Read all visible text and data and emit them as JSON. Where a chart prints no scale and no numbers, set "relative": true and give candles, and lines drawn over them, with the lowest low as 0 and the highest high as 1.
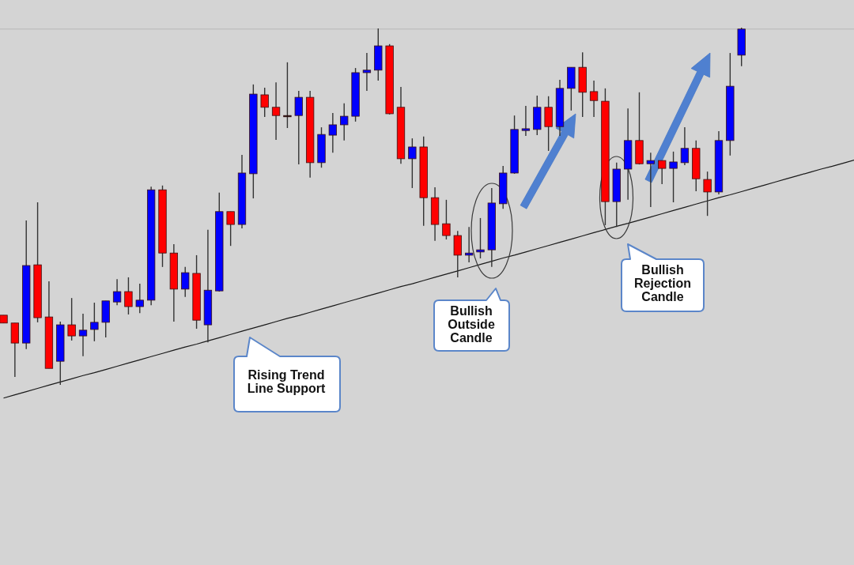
{
  "chart_data": {
    "type": "candlestick",
    "relative": true,
    "categories": [
      null,
      null,
      null,
      null,
      null,
      null,
      null,
      null,
      null,
      null,
      null,
      null,
      null,
      null,
      null,
      null,
      null,
      null,
      null,
      null,
      null,
      null,
      null,
      null,
      null,
      null,
      null,
      null,
      null,
      null,
      null,
      null,
      null,
      null,
      null,
      null,
      null,
      null,
      null,
      null,
      null,
      null,
      null,
      null,
      null,
      null,
      null,
      null,
      null,
      null,
      null,
      null,
      null,
      null,
      null,
      null,
      null,
      null,
      null,
      null,
      null,
      null,
      null,
      null,
      null,
      null,
      null,
      null,
      null,
      null,
      null,
      null,
      null,
      null,
      null,
      null
    ],
    "ohlc": [
      [
        0.195,
        0.195,
        0.173,
        0.173
      ],
      [
        0.173,
        0.173,
        0.022,
        0.117
      ],
      [
        0.117,
        0.46,
        0.1,
        0.334
      ],
      [
        0.336,
        0.511,
        0.175,
        0.188
      ],
      [
        0.19,
        0.29,
        0.046,
        0.046
      ],
      [
        0.066,
        0.177,
        0,
        0.168
      ],
      [
        0.168,
        0.243,
        0.124,
        0.137
      ],
      [
        0.137,
        0.199,
        0.08,
        0.153
      ],
      [
        0.155,
        0.23,
        0.122,
        0.175
      ],
      [
        0.175,
        0.235,
        0.133,
        0.235
      ],
      [
        0.232,
        0.296,
        0.223,
        0.261
      ],
      [
        0.261,
        0.301,
        0.197,
        0.219
      ],
      [
        0.219,
        0.283,
        0.201,
        0.237
      ],
      [
        0.237,
        0.555,
        0.223,
        0.546
      ],
      [
        0.546,
        0.558,
        0.33,
        0.369
      ],
      [
        0.369,
        0.394,
        0.177,
        0.268
      ],
      [
        0.268,
        0.33,
        0.246,
        0.314
      ],
      [
        0.312,
        0.363,
        0.157,
        0.181
      ],
      [
        0.168,
        0.434,
        0.119,
        0.265
      ],
      [
        0.263,
        0.538,
        0.261,
        0.485
      ],
      [
        0.485,
        0.485,
        0.389,
        0.449
      ],
      [
        0.449,
        0.644,
        0.438,
        0.593
      ],
      [
        0.591,
        0.841,
        0.522,
        0.814
      ],
      [
        0.812,
        0.832,
        0.75,
        0.777
      ],
      [
        0.777,
        0.847,
        0.686,
        0.754
      ],
      [
        0.754,
        0.903,
        0.719,
        0.754
      ],
      [
        0.754,
        0.823,
        0.617,
        0.805
      ],
      [
        0.805,
        0.823,
        0.58,
        0.622
      ],
      [
        0.622,
        0.721,
        0.608,
        0.701
      ],
      [
        0.699,
        0.761,
        0.65,
        0.728
      ],
      [
        0.728,
        0.788,
        0.684,
        0.752
      ],
      [
        0.752,
        0.887,
        0.737,
        0.874
      ],
      [
        0.874,
        0.929,
        0.823,
        0.881
      ],
      [
        0.881,
        0.998,
        0.852,
        0.949
      ],
      [
        0.949,
        0.954,
        0.757,
        0.759
      ],
      [
        0.777,
        0.834,
        0.619,
        0.633
      ],
      [
        0.633,
        0.69,
        0.551,
        0.666
      ],
      [
        0.666,
        0.695,
        0.445,
        0.524
      ],
      [
        0.524,
        0.553,
        0.403,
        0.449
      ],
      [
        0.451,
        0.518,
        0.407,
        0.418
      ],
      [
        0.418,
        0.431,
        0.301,
        0.363
      ],
      [
        0.363,
        0.442,
        0.343,
        0.369
      ],
      [
        0.372,
        0.467,
        0.354,
        0.378
      ],
      [
        0.378,
        0.551,
        0.33,
        0.509
      ],
      [
        0.507,
        0.613,
        0.493,
        0.593
      ],
      [
        0.593,
        0.754,
        0.591,
        0.715
      ],
      [
        0.712,
        0.781,
        0.697,
        0.717
      ],
      [
        0.715,
        0.81,
        0.699,
        0.777
      ],
      [
        0.777,
        0.808,
        0.655,
        0.723
      ],
      [
        0.723,
        0.854,
        0.697,
        0.83
      ],
      [
        0.83,
        0.889,
        0.768,
        0.889
      ],
      [
        0.889,
        0.931,
        0.75,
        0.819
      ],
      [
        0.821,
        0.852,
        0.75,
        0.796
      ],
      [
        0.794,
        0.83,
        0.447,
        0.513
      ],
      [
        0.513,
        0.622,
        0.442,
        0.604
      ],
      [
        0.604,
        0.774,
        0.518,
        0.684
      ],
      [
        0.684,
        0.819,
        0.617,
        0.619
      ],
      [
        0.619,
        0.65,
        0.498,
        0.628
      ],
      [
        0.628,
        0.628,
        0.562,
        0.606
      ],
      [
        0.606,
        0.653,
        0.511,
        0.624
      ],
      [
        0.622,
        0.721,
        0.615,
        0.662
      ],
      [
        0.662,
        0.684,
        0.542,
        0.577
      ],
      [
        0.575,
        0.597,
        0.473,
        0.54
      ],
      [
        0.54,
        0.71,
        0.533,
        0.684
      ],
      [
        0.684,
        0.929,
        0.642,
        0.836
      ],
      [
        0.923,
        1,
        0.892,
        0.996
      ],
      null,
      null,
      null,
      null,
      null,
      null,
      null,
      null,
      null,
      null
    ],
    "colors": [
      "#ff0000",
      "#ff0000",
      "#0000ff",
      "#ff0000",
      "#ff0000",
      "#0000ff",
      "#ff0000",
      "#0000ff",
      "#0000ff",
      "#0000ff",
      "#0000ff",
      "#ff0000",
      "#0000ff",
      "#0000ff",
      "#ff0000",
      "#ff0000",
      "#0000ff",
      "#ff0000",
      "#0000ff",
      "#0000ff",
      "#ff0000",
      "#0000ff",
      "#0000ff",
      "#ff0000",
      "#ff0000",
      "#000000",
      "#0000ff",
      "#ff0000",
      "#0000ff",
      "#0000ff",
      "#0000ff",
      "#0000ff",
      "#0000ff",
      "#0000ff",
      "#ff0000",
      "#ff0000",
      "#0000ff",
      "#ff0000",
      "#ff0000",
      "#ff0000",
      "#ff0000",
      "#0000ff",
      "#0000ff",
      "#0000ff",
      "#0000ff",
      "#0000ff",
      "#0000ff",
      "#0000ff",
      "#ff0000",
      "#0000ff",
      "#0000ff",
      "#ff0000",
      "#ff0000",
      "#ff0000",
      "#0000ff",
      "#0000ff",
      "#ff0000",
      "#0000ff",
      "#ff0000",
      "#0000ff",
      "#0000ff",
      "#ff0000",
      "#ff0000",
      "#0000ff",
      "#0000ff",
      "#0000ff",
      null,
      null,
      null,
      null,
      null,
      null,
      null,
      null,
      null,
      null
    ],
    "series": [
      {
        "type": "line",
        "color": "#1a1a1a",
        "values": [
          -0.037,
          -0.028,
          -0.019,
          -0.01,
          -0.001,
          0.008,
          0.017,
          0.026,
          0.034,
          0.043,
          0.052,
          0.061,
          0.07,
          0.079,
          0.088,
          0.097,
          0.106,
          0.114,
          0.123,
          0.132,
          0.141,
          0.15,
          0.159,
          0.168,
          0.177,
          0.186,
          0.194,
          0.203,
          0.212,
          0.221,
          0.23,
          0.239,
          0.248,
          0.257,
          0.266,
          0.275,
          0.283,
          0.292,
          0.301,
          0.31,
          0.319,
          0.328,
          0.337,
          0.346,
          0.355,
          0.363,
          0.372,
          0.381,
          0.39,
          0.399,
          0.408,
          0.417,
          0.426,
          0.435,
          0.444,
          0.452,
          0.461,
          0.47,
          0.479,
          0.488,
          0.497,
          0.506,
          0.515,
          0.524,
          0.532,
          0.541,
          0.55,
          0.559,
          0.568,
          0.577,
          0.586,
          0.595,
          0.604,
          0.612,
          0.621,
          0.63
        ]
      }
    ],
    "ref_lines": [
      {
        "axis": "y",
        "value": 0.996,
        "color": "#b8b8b8"
      }
    ],
    "annotations": [
      "Rising Trend Line Support",
      "Bullish Outside Candle",
      "Bullish Rejection Candle"
    ]
  }
}
